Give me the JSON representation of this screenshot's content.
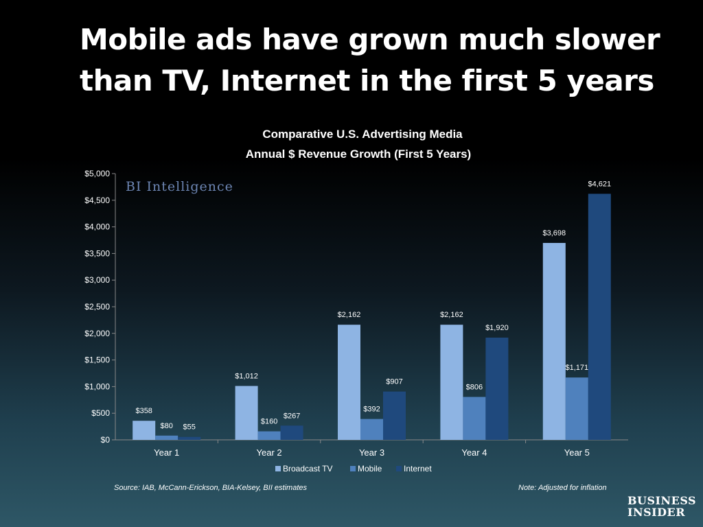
{
  "slide": {
    "title_line1": "Mobile ads have grown much slower",
    "title_line2": "than TV, Internet in the first 5 years"
  },
  "watermark": "BI Intelligence",
  "source_note": "Source: IAB, McCann-Erickson, BIA-Kelsey, BII estimates",
  "footnote": "Note: Adjusted for inflation",
  "logo": {
    "line1": "BUSINESS",
    "line2": "INSIDER"
  },
  "colors": {
    "broadcast_tv": "#8eb4e3",
    "mobile": "#4f81bd",
    "internet": "#1f497d",
    "axis": "#8a8a8a"
  },
  "chart_data": {
    "type": "bar",
    "title_line1": "Comparative U.S. Advertising Media",
    "title_line2": "Annual $ Revenue Growth (First 5 Years)",
    "categories": [
      "Year 1",
      "Year 2",
      "Year 3",
      "Year 4",
      "Year 5"
    ],
    "series": [
      {
        "name": "Broadcast TV",
        "values": [
          358,
          1012,
          2162,
          2162,
          3698
        ],
        "labels": [
          "$358",
          "$1,012",
          "$2,162",
          "$2,162",
          "$3,698"
        ]
      },
      {
        "name": "Mobile",
        "values": [
          80,
          160,
          392,
          806,
          1171
        ],
        "labels": [
          "$80",
          "$160",
          "$392",
          "$806",
          "$1,171"
        ]
      },
      {
        "name": "Internet",
        "values": [
          55,
          267,
          907,
          1920,
          4621
        ],
        "labels": [
          "$55",
          "$267",
          "$907",
          "$1,920",
          "$4,621"
        ]
      }
    ],
    "ylim": [
      0,
      5000
    ],
    "yticks": [
      0,
      500,
      1000,
      1500,
      2000,
      2500,
      3000,
      3500,
      4000,
      4500,
      5000
    ],
    "ytick_labels": [
      "$0",
      "$500",
      "$1,000",
      "$1,500",
      "$2,000",
      "$2,500",
      "$3,000",
      "$3,500",
      "$4,000",
      "$4,500",
      "$5,000"
    ],
    "grid": false,
    "legend_position": "bottom"
  }
}
